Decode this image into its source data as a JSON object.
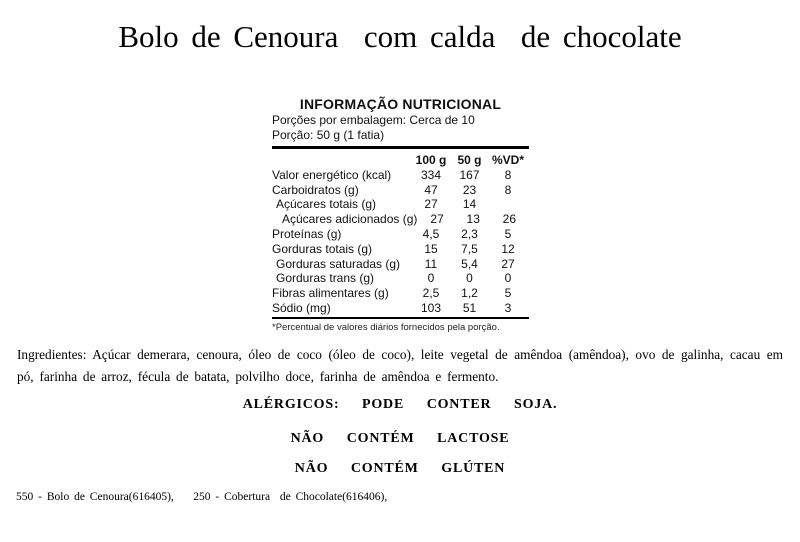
{
  "page": {
    "title": "Bolo de Cenoura  com calda  de chocolate"
  },
  "nutrition": {
    "header": "INFORMAÇÃO NUTRICIONAL",
    "servings_line": "Porções por embalagem: Cerca de 10",
    "portion_line": "Porção: 50 g (1 fatia)",
    "columns": [
      "100 g",
      "50 g",
      "%VD*"
    ],
    "rows": [
      {
        "label": "Valor energético (kcal)",
        "v100": "334",
        "v50": "167",
        "vd": "8"
      },
      {
        "label": "Carboidratos (g)",
        "v100": "47",
        "v50": "23",
        "vd": "8"
      },
      {
        "label": "Açúcares totais (g)",
        "v100": "27",
        "v50": "14",
        "vd": ""
      },
      {
        "label": "Açúcares adicionados (g)",
        "v100": "27",
        "v50": "13",
        "vd": "26"
      },
      {
        "label": "Proteínas (g)",
        "v100": "4,5",
        "v50": "2,3",
        "vd": "5"
      },
      {
        "label": "Gorduras totais (g)",
        "v100": "15",
        "v50": "7,5",
        "vd": "12"
      },
      {
        "label": "Gorduras saturadas (g)",
        "v100": "11",
        "v50": "5,4",
        "vd": "27"
      },
      {
        "label": "Gorduras trans (g)",
        "v100": "0",
        "v50": "0",
        "vd": "0"
      },
      {
        "label": "Fibras alimentares (g)",
        "v100": "2,5",
        "v50": "1,2",
        "vd": "5"
      },
      {
        "label": "Sódio (mg)",
        "v100": "103",
        "v50": "51",
        "vd": "3"
      }
    ],
    "footnote": "*Percentual de valores diários fornecidos pela porção."
  },
  "ingredients_text": "Ingredientes: Açúcar demerara, cenoura, óleo de coco (óleo de coco), leite vegetal de amêndoa (amêndoa), ovo de galinha, cacau em pó, farinha de arroz, fécula de batata, polvilho doce, farinha de amêndoa e fermento.",
  "allergens": [
    "ALÉRGICOS:  PODE  CONTER  SOJA.",
    "NÃO  CONTÉM  LACTOSE",
    "NÃO  CONTÉM  GLÚTEN"
  ],
  "footer_line": "550 - Bolo de Cenoura(616405),    250 - Cobertura  de Chocolate(616406),"
}
